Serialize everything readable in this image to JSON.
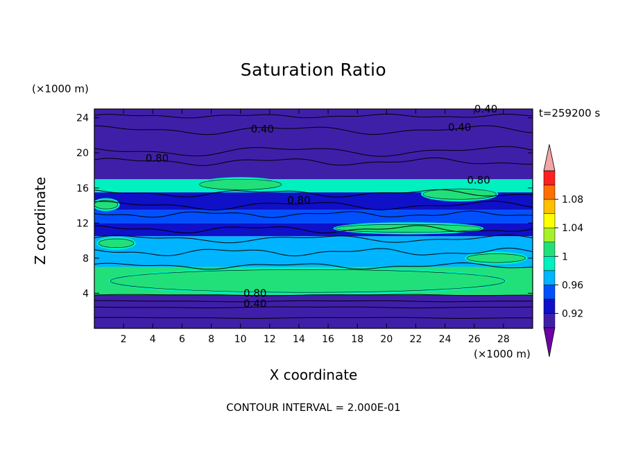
{
  "chart_data": {
    "type": "heatmap",
    "title": "Saturation Ratio",
    "xlabel": "X coordinate",
    "ylabel": "Z coordinate",
    "x_unit": "(×1000 m)",
    "y_unit": "(×1000 m)",
    "time_label": "t=259200 s",
    "footer": "CONTOUR INTERVAL = 2.000E-01",
    "xlim": [
      0,
      30
    ],
    "ylim": [
      0,
      25
    ],
    "x_ticks": [
      "2",
      "4",
      "6",
      "8",
      "10",
      "12",
      "14",
      "16",
      "18",
      "20",
      "22",
      "24",
      "26",
      "28"
    ],
    "y_ticks": [
      "4",
      "8",
      "12",
      "16",
      "20",
      "24"
    ],
    "colorbar": {
      "levels": [
        0.9,
        0.92,
        0.94,
        0.96,
        0.98,
        1.0,
        1.02,
        1.04,
        1.06,
        1.08,
        1.1
      ],
      "labels": [
        "0.92",
        "0.96",
        "1",
        "1.04",
        "1.08"
      ],
      "colors": [
        "#3f1fa8",
        "#1010c8",
        "#0050ff",
        "#00b4ff",
        "#00f0c0",
        "#21e07a",
        "#a8f02a",
        "#ffff00",
        "#ffc000",
        "#ff7000",
        "#ff2020"
      ],
      "below_color": "#6e00a8",
      "above_color": "#f4a4a4"
    },
    "contour_labels": [
      {
        "text": "0.40",
        "x": 11.5,
        "y": 22.3
      },
      {
        "text": "0.40",
        "x": 26.8,
        "y": 24.6
      },
      {
        "text": "0.40",
        "x": 25.0,
        "y": 22.5
      },
      {
        "text": "0.80",
        "x": 4.3,
        "y": 19.0
      },
      {
        "text": "0.80",
        "x": 26.3,
        "y": 16.5
      },
      {
        "text": "0.80",
        "x": 14.0,
        "y": 14.2
      },
      {
        "text": "0.80",
        "x": 11.0,
        "y": 3.6
      },
      {
        "text": "0.40",
        "x": 11.0,
        "y": 2.4
      }
    ],
    "bands": [
      {
        "z": [
          0.0,
          3.8
        ],
        "value": 0.9
      },
      {
        "z": [
          3.8,
          7.0
        ],
        "value": 1.0
      },
      {
        "z": [
          7.0,
          8.5
        ],
        "value": 0.96
      },
      {
        "z": [
          8.5,
          10.5
        ],
        "value": 0.97
      },
      {
        "z": [
          10.5,
          12.0
        ],
        "value": 0.93
      },
      {
        "z": [
          12.0,
          13.5
        ],
        "value": 0.95
      },
      {
        "z": [
          13.5,
          15.5
        ],
        "value": 0.92
      },
      {
        "z": [
          15.5,
          17.0
        ],
        "value": 0.99
      },
      {
        "z": [
          17.0,
          25.0
        ],
        "value": 0.9
      }
    ],
    "patches": [
      {
        "x": 14.6,
        "y": 5.4,
        "rx": 13.5,
        "ry": 1.3,
        "value": 1.01
      },
      {
        "x": 10.0,
        "y": 16.4,
        "rx": 2.8,
        "ry": 0.6,
        "value": 1.01
      },
      {
        "x": 25.0,
        "y": 15.3,
        "rx": 2.5,
        "ry": 0.6,
        "value": 1.01
      },
      {
        "x": 21.5,
        "y": 11.4,
        "rx": 5.0,
        "ry": 0.45,
        "value": 1.01
      },
      {
        "x": 1.5,
        "y": 9.7,
        "rx": 1.2,
        "ry": 0.5,
        "value": 1.01
      },
      {
        "x": 0.8,
        "y": 14.1,
        "rx": 0.8,
        "ry": 0.5,
        "value": 1.01
      },
      {
        "x": 27.5,
        "y": 8.0,
        "rx": 2.0,
        "ry": 0.5,
        "value": 1.01
      }
    ]
  }
}
